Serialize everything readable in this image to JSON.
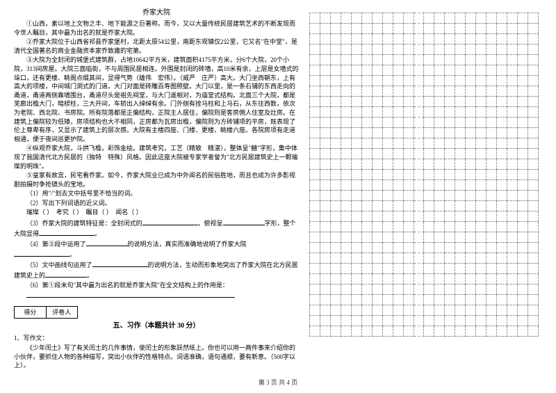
{
  "article": {
    "title": "乔家大院",
    "paragraphs": [
      "①山西，素以地上文物之丰、地下能源之巨著称。而今，又以大量传统民居建筑艺术的不断发现而令世人瞩目，其中最为出名的就是乔家大院。",
      "②乔家大院位于山西省祁县乔家堡村，北距太原54公里，南距东观镇仅2公里，它又名\"在中堂\"，是清代全国著名的商业金融资本家乔致庸的宅第。",
      "③大院为全封闭的城堡式建筑群，占地10642平方米，建筑面积4175平方米，分6个大院，20个小院，313间房屋。大院三面临街，不与周围民居相连。外围是封闭的砖墙，高10米有余，上层是女墙式的垛口，还有更楼、眺阁点缀其间，显得气势（雄伟　宏伟）。（威严　庄严）高大。大门坐西朝东，上有高大的项楼，中间城门洞式的门道。大门对面是砖雕百寿图照壁。大门以里，是一条石铺的东西走向的甬道，甬道两侧靠墙围台，甬道尽头是祖先祠堂，与大门遥相对，为庙堂式结构。北面三个大院，都是芜廊出檐大门，暗棂柱，三大开间，车轿出入绰绰有余。门外侧有拴马柱和上马石，从东往西数，依次为老院、西北院、书房院。所有院落都是正偏结构，正院主人居住，偏院则是客房佣人住室及灶房。在建筑上偏院较为低矮，房项结构也大不相同，正房都为瓦房出檐，偏院则为方砖铺项的平房，既表现了伦上尊卑有序，又显示了建筑上的层次感。大院有主楼四座、门楼、更楼、眺楼六座。各院房项有走道相通，便于夜间巡更护院。",
      "④纵观乔家大院，斗拱飞檐，彩饰金绘。建筑考究，工艺（精致　精湛），整体呈\"囍\"字形，集中体现了我国清代北方民居的（独特　特殊）风格。因此这座大院被专家学者誉为\"北方民居建筑史上一颗璀璨的明珠\"。",
      "⑤皇家有故宫，民宅看乔家。如今，乔家大院业已成为中外闻名的民俗胜地，而且也成为许多影视剧拍摄时争抢镜头的宝地。"
    ]
  },
  "questions": {
    "q1": "（1）用\"/\"划去文中括号里不恰当的词。",
    "q2": "（2）写出下列词语的近义词。",
    "q2_words": {
      "w1": "璀璨（",
      "w2": "）　考究（",
      "w3": "）　瞩目（",
      "w4": "）　闻名（",
      "w5": "）"
    },
    "q3_prefix": "（3）乔家大院的建筑特征是：全封闭式的",
    "q3_mid": "，俯视呈",
    "q3_suffix": "字形，整个大院显得",
    "q3_end": "。",
    "q4_prefix": "（4）第③段中运用了",
    "q4_mid": "的说明方法，真实而准确地说明了乔家大院",
    "q4_end": "。",
    "q5_prefix": "（5）文中画线句运用了",
    "q5_suffix": "的说明方法，生动而形象地突出了乔家大院在北方民居建筑史上的",
    "q5_end": "。",
    "q6": "（6）第①段末句\"其中最为出名的就是乔家大院\"在全文结构上的作用是："
  },
  "score_box": {
    "left": "得分",
    "right": "评卷人"
  },
  "section5": {
    "title": "五、习作（本题共计 30 分）",
    "item_label": "1、写作文：",
    "prompt": "《少年闰土》写了有关闰土的几件事情，使闰土的形象跃然纸上。你也可以用一两件事来介绍你的小伙伴，要抓住人物的各种描写，突出小伙伴的性格特点。词语准确，语句通顺，要有新意。（500字以上）。"
  },
  "footer": "第 3 页 共 4 页",
  "grid": {
    "rows": 31,
    "cols": 22
  },
  "colors": {
    "grid_border": "#999999",
    "text": "#000000",
    "background": "#ffffff"
  }
}
